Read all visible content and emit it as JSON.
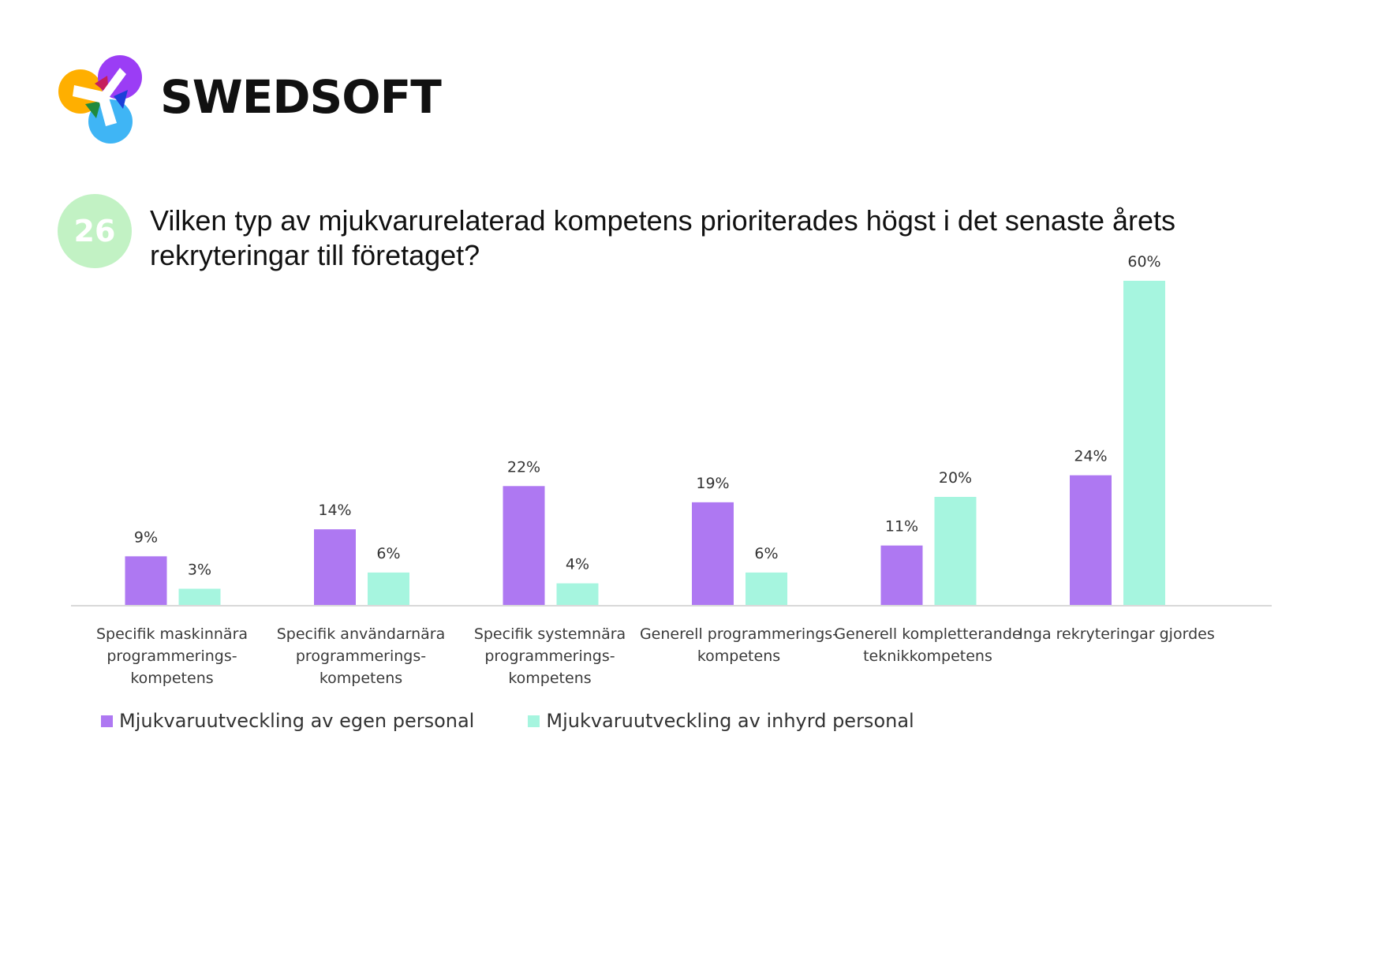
{
  "brand": {
    "name": "SWEDSOFT",
    "logo_colors": [
      "#ffaf00",
      "#9b3df5",
      "#c51f5d",
      "#1f8a3d",
      "#1c3fd8",
      "#3fb5f5"
    ]
  },
  "question": {
    "number": "26",
    "text": "Vilken typ av mjukvarurelaterad kompetens prioriterades högst i det senaste årets rekryteringar till företaget?"
  },
  "colors": {
    "series_1": "#ae78f2",
    "series_2": "#a6f5df",
    "axis": "#d9d9d9",
    "badge": "#c2f2c4"
  },
  "chart_data": {
    "type": "bar",
    "title": "",
    "xlabel": "",
    "ylabel": "",
    "ylim": [
      0,
      60
    ],
    "grid": false,
    "legend_position": "bottom-left",
    "categories": [
      [
        "Specifik maskinnära",
        "programmerings-",
        "kompetens"
      ],
      [
        "Specifik användarnära",
        "programmerings-",
        "kompetens"
      ],
      [
        "Specifik systemnära",
        "programmerings-",
        "kompetens"
      ],
      [
        "Generell programmerings-",
        "kompetens"
      ],
      [
        "Generell kompletterande",
        "teknikkompetens"
      ],
      [
        "Inga rekryteringar gjordes"
      ]
    ],
    "series": [
      {
        "name": "Mjukvaruutveckling av egen personal",
        "values": [
          9,
          14,
          22,
          19,
          11,
          24
        ],
        "labels": [
          "9%",
          "14%",
          "22%",
          "19%",
          "11%",
          "24%"
        ]
      },
      {
        "name": "Mjukvaruutveckling av inhyrd personal",
        "values": [
          3,
          6,
          4,
          6,
          20,
          60
        ],
        "labels": [
          "3%",
          "6%",
          "4%",
          "6%",
          "20%",
          "60%"
        ]
      }
    ]
  }
}
